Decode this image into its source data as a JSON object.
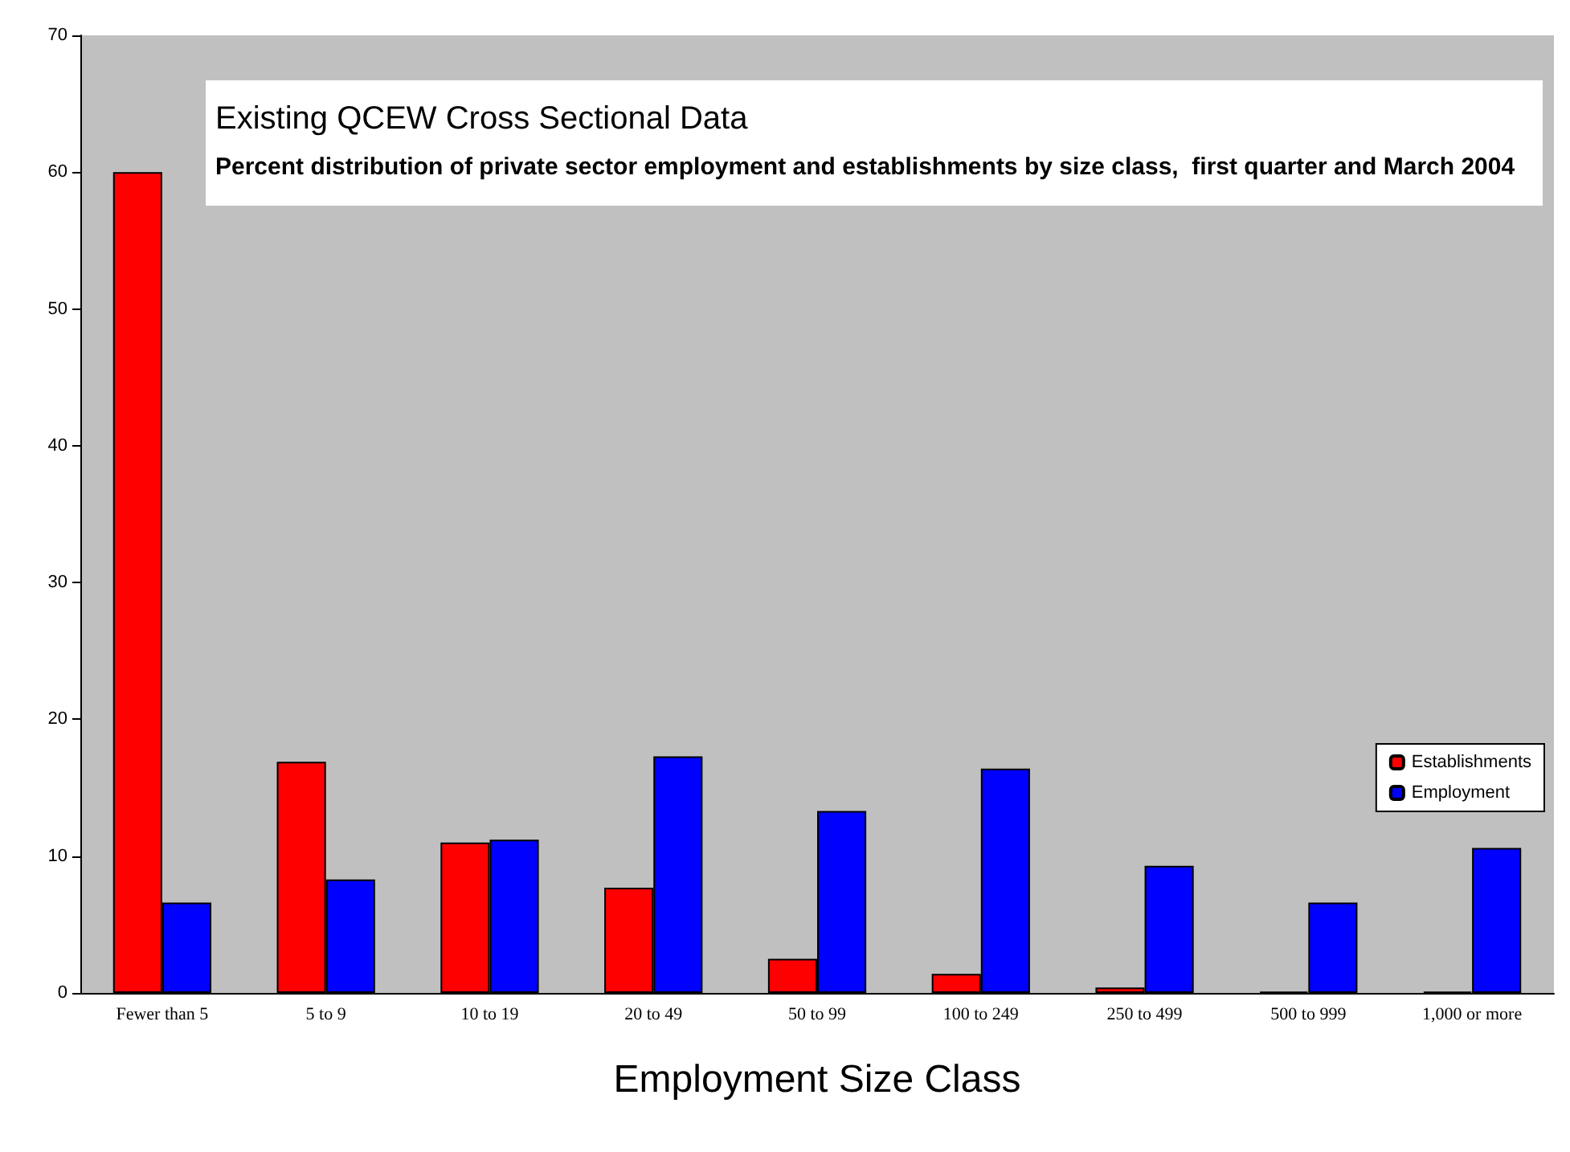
{
  "chart_data": {
    "type": "bar",
    "title": "Existing QCEW Cross Sectional Data",
    "subtitle": "Percent distribution of private sector employment and establishments by size class,  first quarter and March 2004",
    "xlabel": "Employment Size Class",
    "categories": [
      "Fewer than 5",
      "5 to 9",
      "10 to 19",
      "20 to 49",
      "50 to 99",
      "100 to 249",
      "250 to 499",
      "500 to 999",
      "1,000 or more"
    ],
    "series": [
      {
        "name": "Establishments",
        "color": "#ff0000",
        "values": [
          60,
          16.9,
          11.0,
          7.7,
          2.5,
          1.4,
          0.4,
          0.1,
          0.1
        ]
      },
      {
        "name": "Employment",
        "color": "#0000ff",
        "values": [
          6.6,
          8.3,
          11.2,
          17.3,
          13.3,
          16.4,
          9.3,
          6.6,
          10.6
        ]
      }
    ],
    "ylim": [
      0,
      70
    ],
    "yticks": [
      0,
      10,
      20,
      30,
      40,
      50,
      60,
      70
    ],
    "grid": false,
    "legend": "right"
  }
}
